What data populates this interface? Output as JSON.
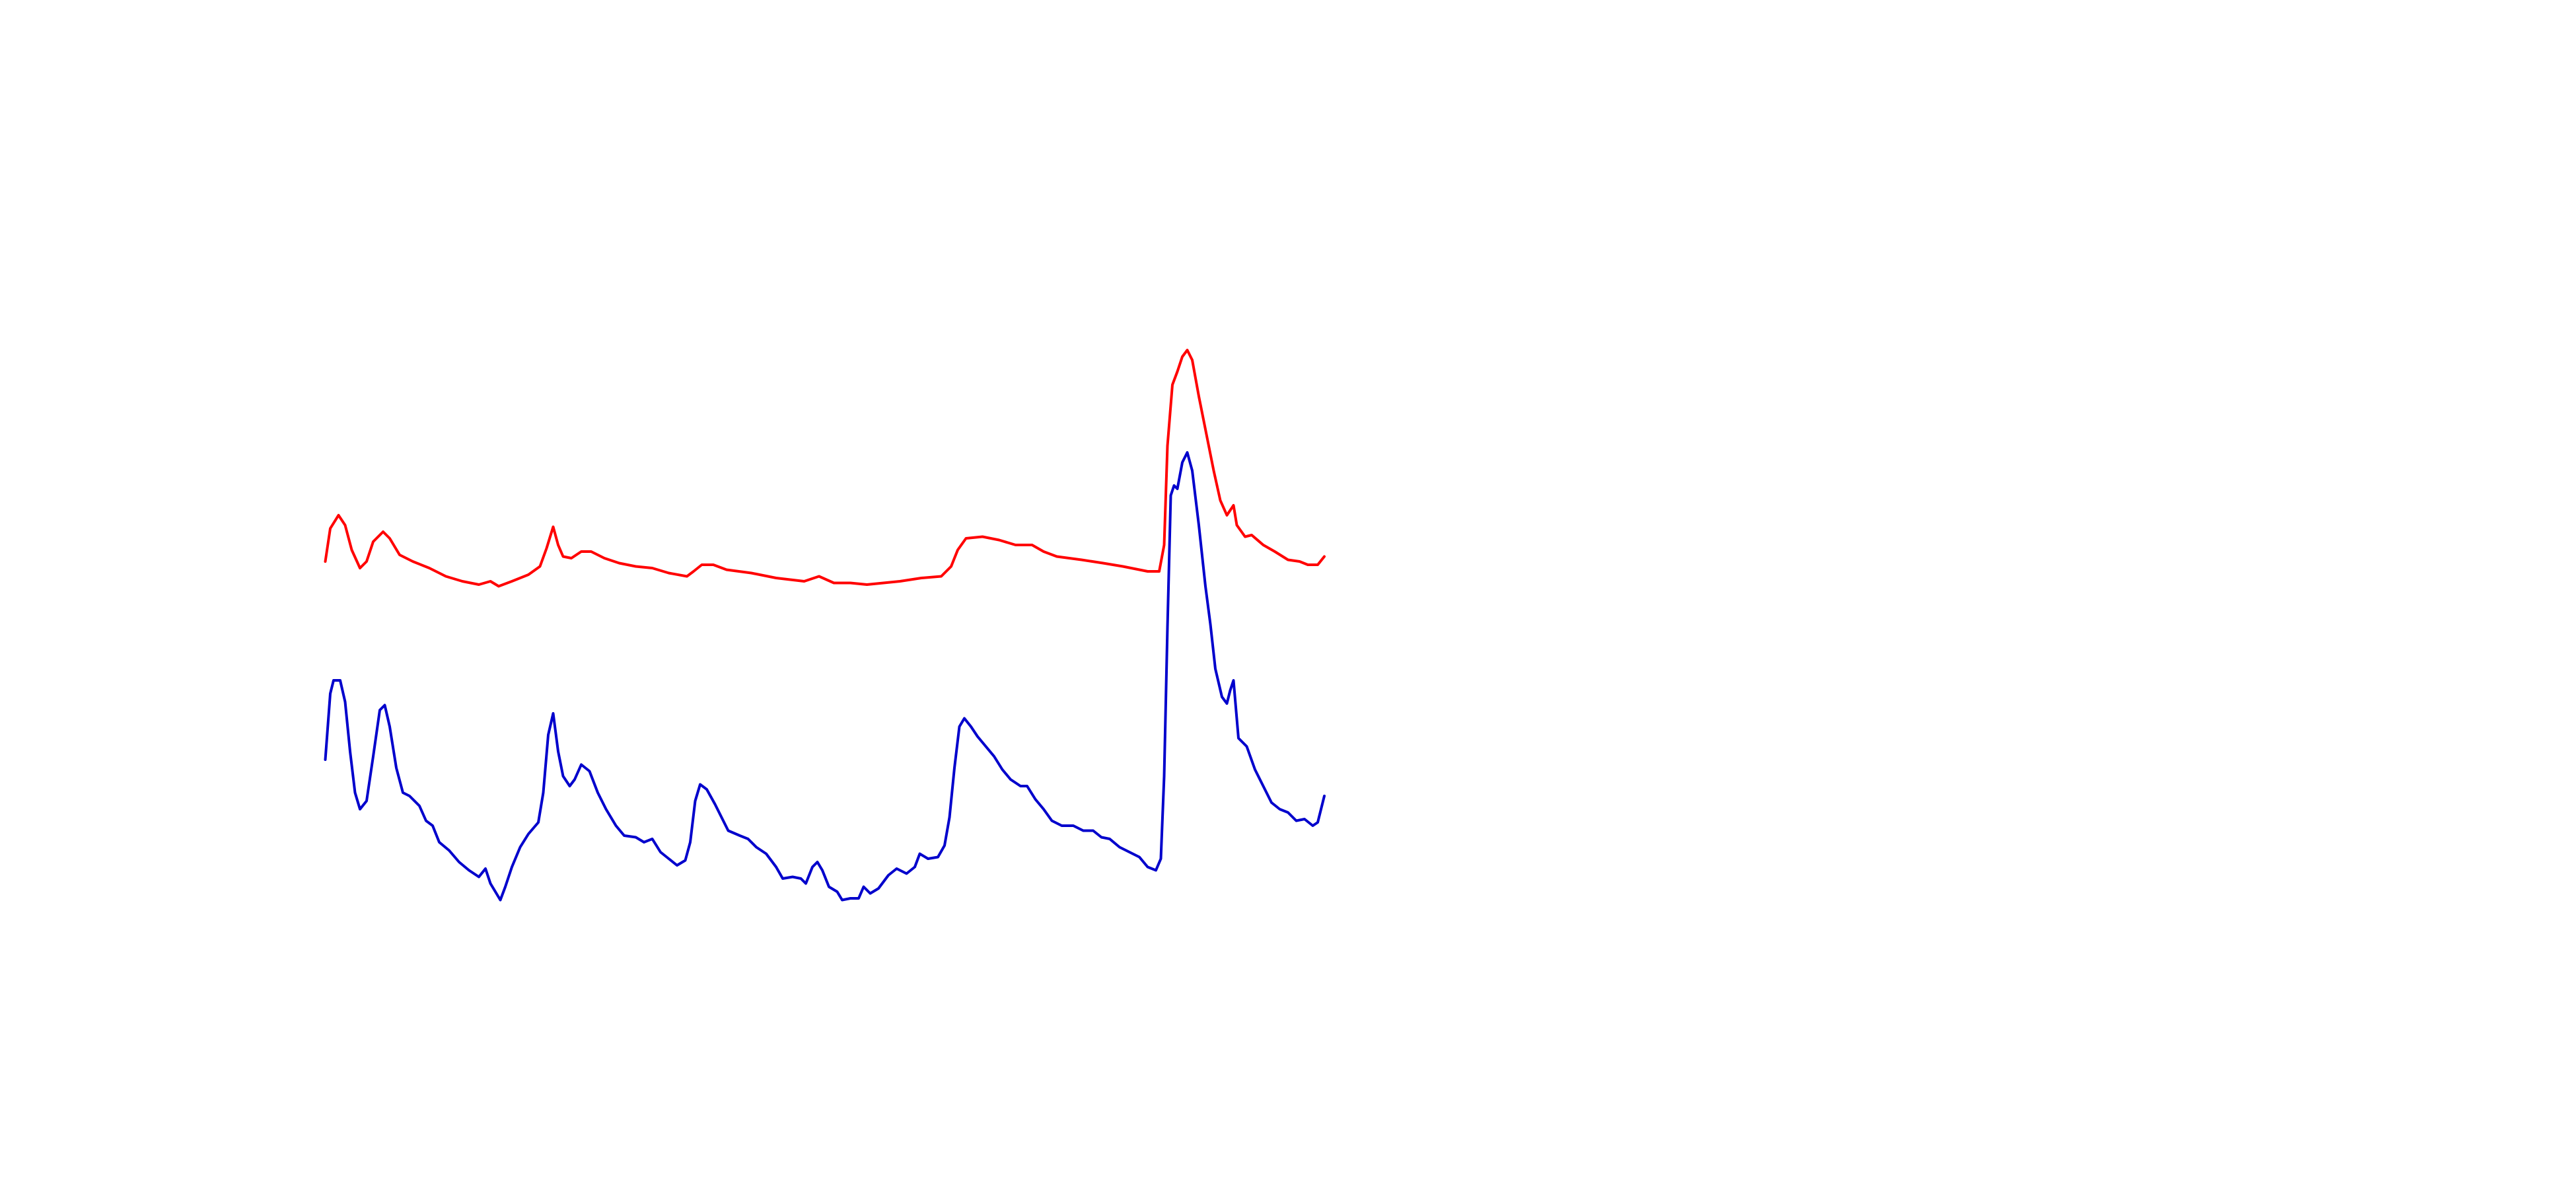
{
  "chart_data": {
    "type": "line",
    "xlim": [
      0,
      1560
    ],
    "ylim": [
      720,
      0
    ],
    "grid": false,
    "series": [
      {
        "color": "#ff0000",
        "x": [
          197,
          200,
          205,
          209,
          213,
          218,
          222,
          226,
          232,
          236,
          242,
          250,
          260,
          270,
          280,
          290,
          297,
          302,
          310,
          320,
          327,
          331,
          335,
          338,
          341,
          346,
          352,
          358,
          366,
          375,
          385,
          395,
          405,
          416,
          420,
          425,
          432,
          440,
          455,
          470,
          487,
          496,
          505,
          515,
          525,
          535,
          545,
          558,
          570,
          576,
          580,
          585,
          595,
          605,
          615,
          625,
          632,
          640,
          655,
          668,
          680,
          695,
          702,
          705,
          707,
          710,
          713,
          716,
          719,
          722,
          726,
          731,
          735,
          739,
          743,
          747,
          749,
          754,
          758,
          765,
          772,
          780,
          787,
          792,
          798,
          802
        ],
        "values": [
          340,
          320,
          312,
          318,
          333,
          344,
          340,
          328,
          322,
          326,
          336,
          340,
          344,
          349,
          352,
          354,
          352,
          355,
          352,
          348,
          343,
          332,
          319,
          330,
          337,
          338,
          334,
          334,
          338,
          341,
          343,
          344,
          347,
          349,
          346,
          342,
          342,
          345,
          347,
          350,
          352,
          349,
          353,
          353,
          354,
          353,
          352,
          350,
          349,
          343,
          333,
          326,
          325,
          327,
          330,
          330,
          334,
          337,
          339,
          341,
          343,
          346,
          346,
          330,
          270,
          233,
          225,
          216,
          212,
          218,
          240,
          265,
          285,
          303,
          312,
          306,
          318,
          325,
          324,
          330,
          334,
          339,
          340,
          342,
          342,
          337
        ]
      },
      {
        "color": "#0000cc",
        "x": [
          197,
          200,
          202,
          206,
          209,
          212,
          215,
          218,
          222,
          226,
          230,
          233,
          236,
          240,
          244,
          248,
          254,
          258,
          262,
          266,
          272,
          278,
          284,
          290,
          294,
          297,
          300,
          303,
          306,
          310,
          315,
          320,
          326,
          329,
          332,
          335,
          338,
          341,
          345,
          348,
          352,
          357,
          362,
          367,
          373,
          378,
          385,
          390,
          395,
          400,
          405,
          410,
          415,
          418,
          421,
          424,
          428,
          433,
          437,
          441,
          448,
          453,
          458,
          464,
          470,
          474,
          480,
          485,
          488,
          492,
          495,
          498,
          502,
          507,
          510,
          515,
          520,
          523,
          527,
          532,
          538,
          543,
          549,
          554,
          557,
          562,
          568,
          572,
          575,
          578,
          581,
          584,
          588,
          592,
          597,
          602,
          607,
          612,
          618,
          622,
          627,
          632,
          637,
          643,
          650,
          656,
          662,
          667,
          672,
          678,
          684,
          690,
          695,
          700,
          703,
          705,
          707,
          709,
          711,
          713,
          716,
          719,
          722,
          726,
          730,
          733,
          736,
          740,
          743,
          745,
          747,
          750,
          755,
          760,
          765,
          770,
          775,
          780,
          785,
          790,
          795,
          798,
          802
        ],
        "values": [
          460,
          420,
          412,
          412,
          425,
          455,
          480,
          490,
          485,
          458,
          430,
          427,
          440,
          465,
          480,
          482,
          488,
          497,
          500,
          510,
          515,
          522,
          527,
          531,
          526,
          535,
          540,
          545,
          537,
          525,
          513,
          505,
          498,
          480,
          445,
          432,
          455,
          470,
          476,
          472,
          463,
          467,
          480,
          490,
          500,
          506,
          507,
          510,
          508,
          516,
          520,
          524,
          521,
          510,
          485,
          475,
          478,
          487,
          495,
          503,
          506,
          508,
          513,
          517,
          525,
          532,
          531,
          532,
          535,
          525,
          522,
          527,
          537,
          540,
          545,
          544,
          544,
          537,
          541,
          538,
          530,
          526,
          529,
          525,
          517,
          520,
          519,
          512,
          495,
          465,
          440,
          435,
          440,
          446,
          452,
          458,
          466,
          472,
          476,
          476,
          484,
          490,
          497,
          500,
          500,
          503,
          503,
          507,
          508,
          513,
          516,
          519,
          525,
          527,
          520,
          470,
          380,
          300,
          294,
          296,
          280,
          274,
          285,
          318,
          355,
          378,
          405,
          422,
          426,
          418,
          412,
          447,
          452,
          466,
          476,
          486,
          490,
          492,
          497,
          496,
          500,
          498,
          482
        ]
      }
    ]
  }
}
